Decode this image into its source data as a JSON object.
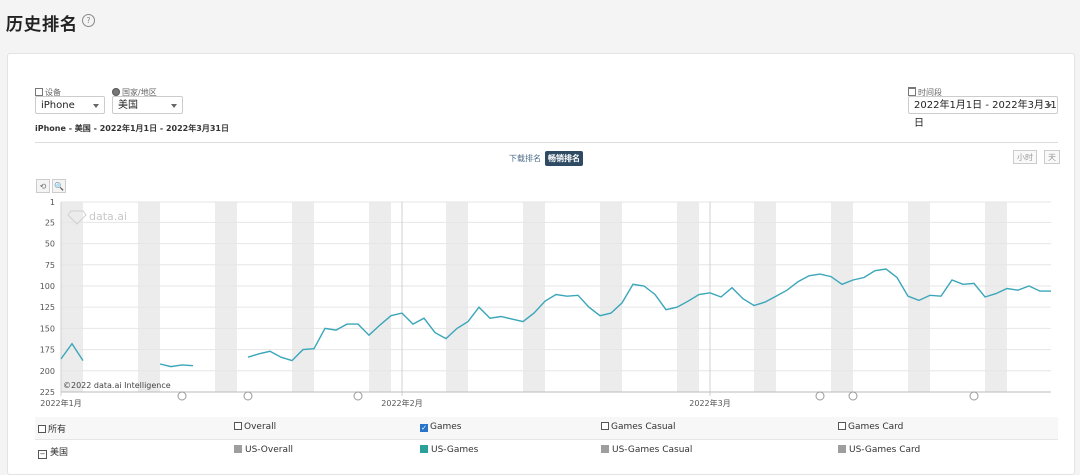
{
  "page": {
    "title": "历史排名",
    "help_icon": "?"
  },
  "filters": {
    "device_label": "设备",
    "device_value": "iPhone",
    "country_label": "国家/地区",
    "country_value": "美国",
    "period_label": "时间段",
    "period_value": "2022年1月1日 - 2022年3月31日"
  },
  "subtitle": "iPhone - 美国 - 2022年1月1日 - 2022年3月31日",
  "rank_toggle": {
    "downloads": "下载排名",
    "revenue": "畅销排名",
    "active": "revenue"
  },
  "granularity": {
    "hour": "小时",
    "day": "天"
  },
  "chart_tools": {
    "reset": "⟲",
    "zoom": "🔍"
  },
  "watermark": "data.ai",
  "copyright": "©2022 data.ai Intelligence",
  "colors": {
    "line": "#3aa6b9",
    "weekend_band": "#ececec",
    "grid": "#e6e6e6",
    "games": "#2aa198",
    "gray_series": "#999999"
  },
  "chart_data": {
    "type": "line",
    "title": "",
    "xlabel": "",
    "ylabel": "",
    "y_reversed": true,
    "ylim": [
      1,
      225
    ],
    "y_ticks": [
      1,
      25,
      50,
      75,
      100,
      125,
      150,
      175,
      200,
      225
    ],
    "x_start": "2022-01-01",
    "x_end": "2022-03-31",
    "x_tick_labels": [
      {
        "date": "2022-01-01",
        "label": "2022年1月"
      },
      {
        "date": "2022-02-01",
        "label": "2022年2月"
      },
      {
        "date": "2022-03-01",
        "label": "2022年3月"
      }
    ],
    "grid": true,
    "weekend_bands": true,
    "event_markers": [
      "2022-01-12",
      "2022-01-18",
      "2022-01-28",
      "2022-03-11",
      "2022-03-14",
      "2022-03-25"
    ],
    "series": [
      {
        "name": "US-Games",
        "color": "#3aa6b9",
        "points": [
          [
            "2022-01-01",
            186
          ],
          [
            "2022-01-02",
            168
          ],
          [
            "2022-01-03",
            188
          ],
          [
            "2022-01-10",
            192
          ],
          [
            "2022-01-11",
            195
          ],
          [
            "2022-01-12",
            193
          ],
          [
            "2022-01-13",
            194
          ],
          [
            "2022-01-18",
            184
          ],
          [
            "2022-01-19",
            180
          ],
          [
            "2022-01-20",
            177
          ],
          [
            "2022-01-21",
            184
          ],
          [
            "2022-01-22",
            188
          ],
          [
            "2022-01-23",
            175
          ],
          [
            "2022-01-24",
            174
          ],
          [
            "2022-01-25",
            150
          ],
          [
            "2022-01-26",
            152
          ],
          [
            "2022-01-27",
            145
          ],
          [
            "2022-01-28",
            145
          ],
          [
            "2022-01-29",
            158
          ],
          [
            "2022-01-30",
            146
          ],
          [
            "2022-01-31",
            135
          ],
          [
            "2022-02-01",
            132
          ],
          [
            "2022-02-02",
            145
          ],
          [
            "2022-02-03",
            138
          ],
          [
            "2022-02-04",
            155
          ],
          [
            "2022-02-05",
            162
          ],
          [
            "2022-02-06",
            150
          ],
          [
            "2022-02-07",
            142
          ],
          [
            "2022-02-08",
            125
          ],
          [
            "2022-02-09",
            138
          ],
          [
            "2022-02-10",
            136
          ],
          [
            "2022-02-11",
            139
          ],
          [
            "2022-02-12",
            142
          ],
          [
            "2022-02-13",
            132
          ],
          [
            "2022-02-14",
            118
          ],
          [
            "2022-02-15",
            110
          ],
          [
            "2022-02-16",
            112
          ],
          [
            "2022-02-17",
            111
          ],
          [
            "2022-02-18",
            125
          ],
          [
            "2022-02-19",
            135
          ],
          [
            "2022-02-20",
            132
          ],
          [
            "2022-02-21",
            120
          ],
          [
            "2022-02-22",
            98
          ],
          [
            "2022-02-23",
            100
          ],
          [
            "2022-02-24",
            110
          ],
          [
            "2022-02-25",
            128
          ],
          [
            "2022-02-26",
            125
          ],
          [
            "2022-02-27",
            118
          ],
          [
            "2022-02-28",
            110
          ],
          [
            "2022-03-01",
            108
          ],
          [
            "2022-03-02",
            113
          ],
          [
            "2022-03-03",
            102
          ],
          [
            "2022-03-04",
            115
          ],
          [
            "2022-03-05",
            123
          ],
          [
            "2022-03-06",
            119
          ],
          [
            "2022-03-07",
            112
          ],
          [
            "2022-03-08",
            105
          ],
          [
            "2022-03-09",
            95
          ],
          [
            "2022-03-10",
            88
          ],
          [
            "2022-03-11",
            86
          ],
          [
            "2022-03-12",
            89
          ],
          [
            "2022-03-13",
            98
          ],
          [
            "2022-03-14",
            93
          ],
          [
            "2022-03-15",
            90
          ],
          [
            "2022-03-16",
            82
          ],
          [
            "2022-03-17",
            80
          ],
          [
            "2022-03-18",
            90
          ],
          [
            "2022-03-19",
            112
          ],
          [
            "2022-03-20",
            117
          ],
          [
            "2022-03-21",
            111
          ],
          [
            "2022-03-22",
            112
          ],
          [
            "2022-03-23",
            93
          ],
          [
            "2022-03-24",
            98
          ],
          [
            "2022-03-25",
            97
          ],
          [
            "2022-03-26",
            113
          ],
          [
            "2022-03-27",
            109
          ],
          [
            "2022-03-28",
            103
          ],
          [
            "2022-03-29",
            105
          ],
          [
            "2022-03-30",
            100
          ],
          [
            "2022-03-31",
            106
          ],
          [
            "2022-04-01",
            106
          ]
        ]
      }
    ]
  },
  "legend": {
    "row1": [
      {
        "label": "所有",
        "checked": false
      },
      {
        "label": "Overall",
        "checked": false
      },
      {
        "label": "Games",
        "checked": true
      },
      {
        "label": "Games Casual",
        "checked": false
      },
      {
        "label": "Games Card",
        "checked": false
      }
    ],
    "row2_country": "美国",
    "row2": [
      {
        "label": "US-Overall",
        "color": "#9e9e9e"
      },
      {
        "label": "US-Games",
        "color": "#2aa198"
      },
      {
        "label": "US-Games Casual",
        "color": "#9e9e9e"
      },
      {
        "label": "US-Games Card",
        "color": "#9e9e9e"
      }
    ]
  }
}
